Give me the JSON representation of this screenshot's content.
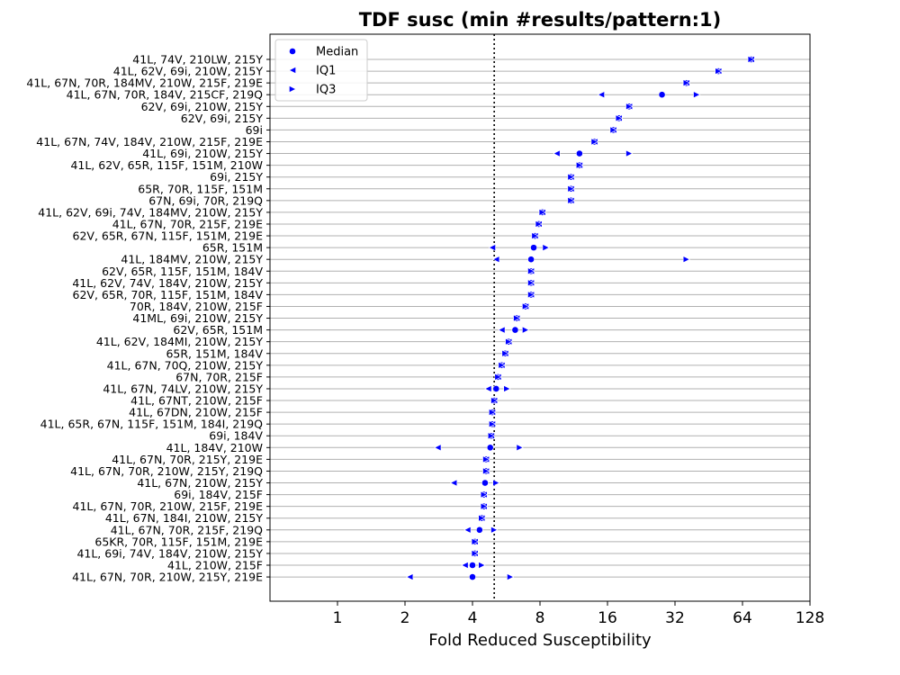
{
  "chart_data": {
    "type": "scatter",
    "title": "TDF susc (min #results/pattern:1)",
    "xlabel": "Fold Reduced Susceptibility",
    "ylabel": "",
    "x_scale": "log2",
    "xlim": [
      0.5,
      128
    ],
    "x_ticks": [
      "1",
      "2",
      "4",
      "8",
      "16",
      "32",
      "64",
      "128"
    ],
    "x_tick_values": [
      1,
      2,
      4,
      8,
      16,
      32,
      64,
      128
    ],
    "reference_line": 5,
    "grid": "horizontal",
    "legend_position": "top-left",
    "legend": [
      "Median",
      "IQ1",
      "IQ3"
    ],
    "colors": {
      "marker": "#0000ff",
      "grid": "#b0b0b0",
      "reference": "#000000"
    },
    "categories": [
      "41L, 74V, 210LW, 215Y",
      "41L, 62V, 69i, 210W, 215Y",
      "41L, 67N, 70R, 184MV, 210W, 215F, 219E",
      "41L, 67N, 70R, 184V, 215CF, 219Q",
      "62V, 69i, 210W, 215Y",
      "62V, 69i, 215Y",
      "69i",
      "41L, 67N, 74V, 184V, 210W, 215F, 219E",
      "41L, 69i, 210W, 215Y",
      "41L, 62V, 65R, 115F, 151M, 210W",
      "69i, 215Y",
      "65R, 70R, 115F, 151M",
      "67N, 69i, 70R, 219Q",
      "41L, 62V, 69i, 74V, 184MV, 210W, 215Y",
      "41L, 67N, 70R, 215F, 219E",
      "62V, 65R, 67N, 115F, 151M, 219E",
      "65R, 151M",
      "41L, 184MV, 210W, 215Y",
      "62V, 65R, 115F, 151M, 184V",
      "41L, 62V, 74V, 184V, 210W, 215Y",
      "62V, 65R, 70R, 115F, 151M, 184V",
      "70R, 184V, 210W, 215F",
      "41ML, 69i, 210W, 215Y",
      "62V, 65R, 151M",
      "41L, 62V, 184MI, 210W, 215Y",
      "65R, 151M, 184V",
      "41L, 67N, 70Q, 210W, 215Y",
      "67N, 70R, 215F",
      "41L, 67N, 74LV, 210W, 215Y",
      "41L, 67NT, 210W, 215F",
      "41L, 67DN, 210W, 215F",
      "41L, 65R, 67N, 115F, 151M, 184I, 219Q",
      "69i, 184V",
      "41L, 184V, 210W",
      "41L, 67N, 70R, 215Y, 219E",
      "41L, 67N, 70R, 210W, 215Y, 219Q",
      "41L, 67N, 210W, 215Y",
      "69i, 184V, 215F",
      "41L, 67N, 70R, 210W, 215F, 219E",
      "41L, 67N, 184I, 210W, 215Y",
      "41L, 67N, 70R, 215F, 219Q",
      "65KR, 70R, 115F, 151M, 219E",
      "41L, 69i, 74V, 184V, 210W, 215Y",
      "41L, 210W, 215F",
      "41L, 67N, 70R, 210W, 215Y, 219E"
    ],
    "series": [
      {
        "name": "Median",
        "marker": "circle",
        "values": [
          70,
          50,
          36,
          28,
          20,
          18,
          17,
          14,
          12,
          12,
          11,
          11,
          11,
          8.2,
          7.9,
          7.6,
          7.5,
          7.3,
          7.3,
          7.3,
          7.3,
          6.9,
          6.3,
          6.2,
          5.8,
          5.6,
          5.4,
          5.2,
          5.1,
          5.0,
          4.9,
          4.9,
          4.85,
          4.8,
          4.6,
          4.6,
          4.55,
          4.5,
          4.5,
          4.4,
          4.3,
          4.1,
          4.1,
          4.0,
          4.0
        ]
      },
      {
        "name": "IQ1",
        "marker": "triangle-left",
        "values": [
          70,
          50,
          36,
          15,
          20,
          18,
          17,
          14,
          9.5,
          12,
          11,
          11,
          11,
          8.2,
          7.9,
          7.6,
          4.9,
          5.1,
          7.3,
          7.3,
          7.3,
          6.9,
          6.3,
          5.4,
          5.8,
          5.6,
          5.4,
          5.2,
          4.7,
          5.0,
          4.9,
          4.9,
          4.85,
          2.8,
          4.6,
          4.6,
          3.3,
          4.5,
          4.5,
          4.4,
          3.8,
          4.1,
          4.1,
          3.7,
          2.1
        ]
      },
      {
        "name": "IQ3",
        "marker": "triangle-right",
        "values": [
          70,
          50,
          36,
          40,
          20,
          18,
          17,
          14,
          20,
          12,
          11,
          11,
          11,
          8.2,
          7.9,
          7.6,
          8.5,
          36,
          7.3,
          7.3,
          7.3,
          6.9,
          6.3,
          6.9,
          5.8,
          5.6,
          5.4,
          5.2,
          5.7,
          5.0,
          4.9,
          4.9,
          4.85,
          6.5,
          4.6,
          4.6,
          5.1,
          4.5,
          4.5,
          4.4,
          5.0,
          4.1,
          4.1,
          4.4,
          5.9
        ]
      }
    ]
  }
}
